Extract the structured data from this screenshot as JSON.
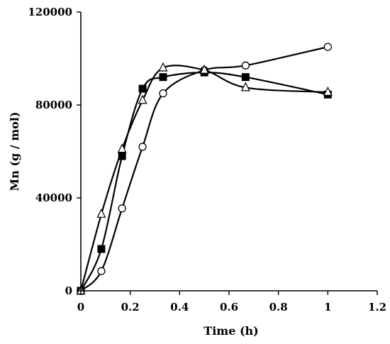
{
  "chart_data": {
    "type": "line",
    "title": "",
    "xlabel": "Time (h)",
    "ylabel": "Mn  (g / mol)",
    "xlim": [
      0,
      1.2
    ],
    "ylim": [
      0,
      120000
    ],
    "x_ticks": [
      "0",
      "0.2",
      "0.4",
      "0.6",
      "0.8",
      "1",
      "1.2"
    ],
    "y_ticks": [
      "0",
      "40000",
      "80000",
      "120000"
    ],
    "grid": false,
    "legend": "none",
    "smooth": true,
    "series": [
      {
        "marker": "open-circle",
        "x": [
          0,
          0.083,
          0.167,
          0.25,
          0.333,
          0.5,
          0.667,
          1.0
        ],
        "y": [
          0,
          8500,
          35500,
          62000,
          85000,
          95000,
          97000,
          105000
        ]
      },
      {
        "marker": "filled-square",
        "x": [
          0,
          0.083,
          0.167,
          0.25,
          0.333,
          0.5,
          0.667,
          1.0
        ],
        "y": [
          0,
          18000,
          58000,
          87000,
          92000,
          94000,
          92000,
          84500
        ]
      },
      {
        "marker": "open-triangle",
        "x": [
          0,
          0.083,
          0.167,
          0.25,
          0.333,
          0.5,
          0.667,
          1.0
        ],
        "y": [
          0,
          33000,
          61000,
          82000,
          96000,
          95000,
          87500,
          85500
        ]
      }
    ]
  }
}
